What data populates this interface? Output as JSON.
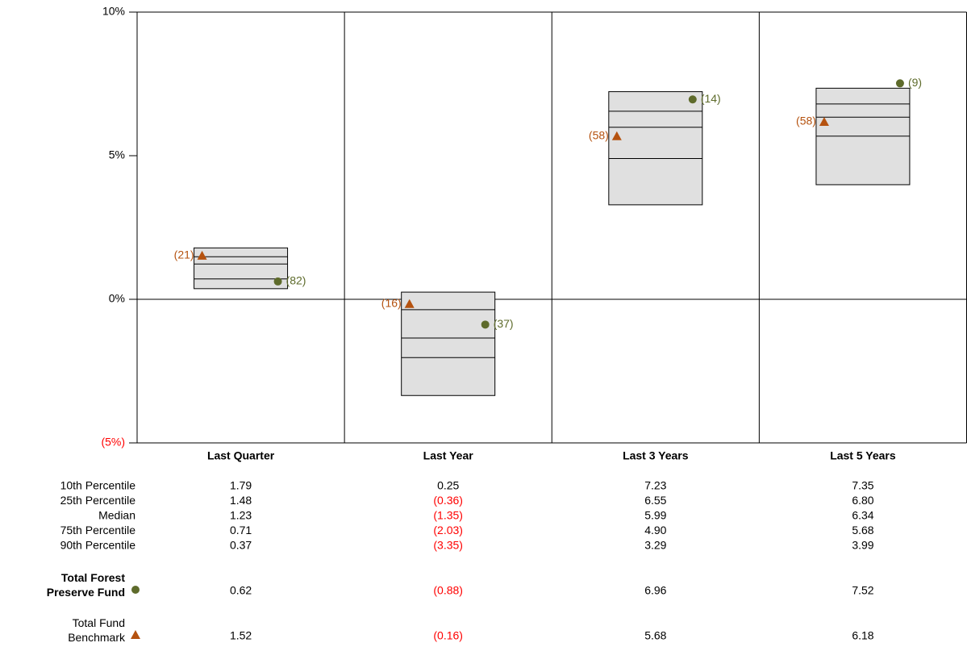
{
  "chart_data": {
    "type": "floating-box",
    "categories": [
      "Last Quarter",
      "Last Year",
      "Last 3 Years",
      "Last 5 Years"
    ],
    "ylim": [
      -5,
      10
    ],
    "yticks": [
      {
        "value": 10,
        "label": "10%"
      },
      {
        "value": 5,
        "label": "5%"
      },
      {
        "value": 0,
        "label": "0%"
      },
      {
        "value": -5,
        "label": "(5%)"
      }
    ],
    "zero_line": true,
    "box_color": "#e0e0e0",
    "negative_color": "#ff0000",
    "percentiles": [
      {
        "name": "10th Percentile",
        "values": [
          1.79,
          0.25,
          7.23,
          7.35
        ],
        "value_labels": [
          "1.79",
          "0.25",
          "7.23",
          "7.35"
        ]
      },
      {
        "name": "25th Percentile",
        "values": [
          1.48,
          -0.36,
          6.55,
          6.8
        ],
        "value_labels": [
          "1.48",
          "(0.36)",
          "6.55",
          "6.80"
        ]
      },
      {
        "name": "Median",
        "values": [
          1.23,
          -1.35,
          5.99,
          6.34
        ],
        "value_labels": [
          "1.23",
          "(1.35)",
          "5.99",
          "6.34"
        ]
      },
      {
        "name": "75th Percentile",
        "values": [
          0.71,
          -2.03,
          4.9,
          5.68
        ],
        "value_labels": [
          "0.71",
          "(2.03)",
          "4.90",
          "5.68"
        ]
      },
      {
        "name": "90th Percentile",
        "values": [
          0.37,
          -3.35,
          3.29,
          3.99
        ],
        "value_labels": [
          "0.37",
          "(3.35)",
          "3.29",
          "3.99"
        ]
      }
    ],
    "series": [
      {
        "name": "Total Forest Preserve Fund",
        "marker": "circle",
        "color": "#5e6b2b",
        "bold": true,
        "values": [
          0.62,
          -0.88,
          6.96,
          7.52
        ],
        "value_labels": [
          "0.62",
          "(0.88)",
          "6.96",
          "7.52"
        ],
        "rank_labels": [
          "(82)",
          "(37)",
          "(14)",
          "(9)"
        ]
      },
      {
        "name": "Total Fund Benchmark",
        "marker": "triangle",
        "color": "#b5520f",
        "bold": false,
        "values": [
          1.52,
          -0.16,
          5.68,
          6.18
        ],
        "value_labels": [
          "1.52",
          "(0.16)",
          "5.68",
          "6.18"
        ],
        "rank_labels": [
          "(21)",
          "(16)",
          "(58)",
          "(58)"
        ]
      }
    ]
  }
}
